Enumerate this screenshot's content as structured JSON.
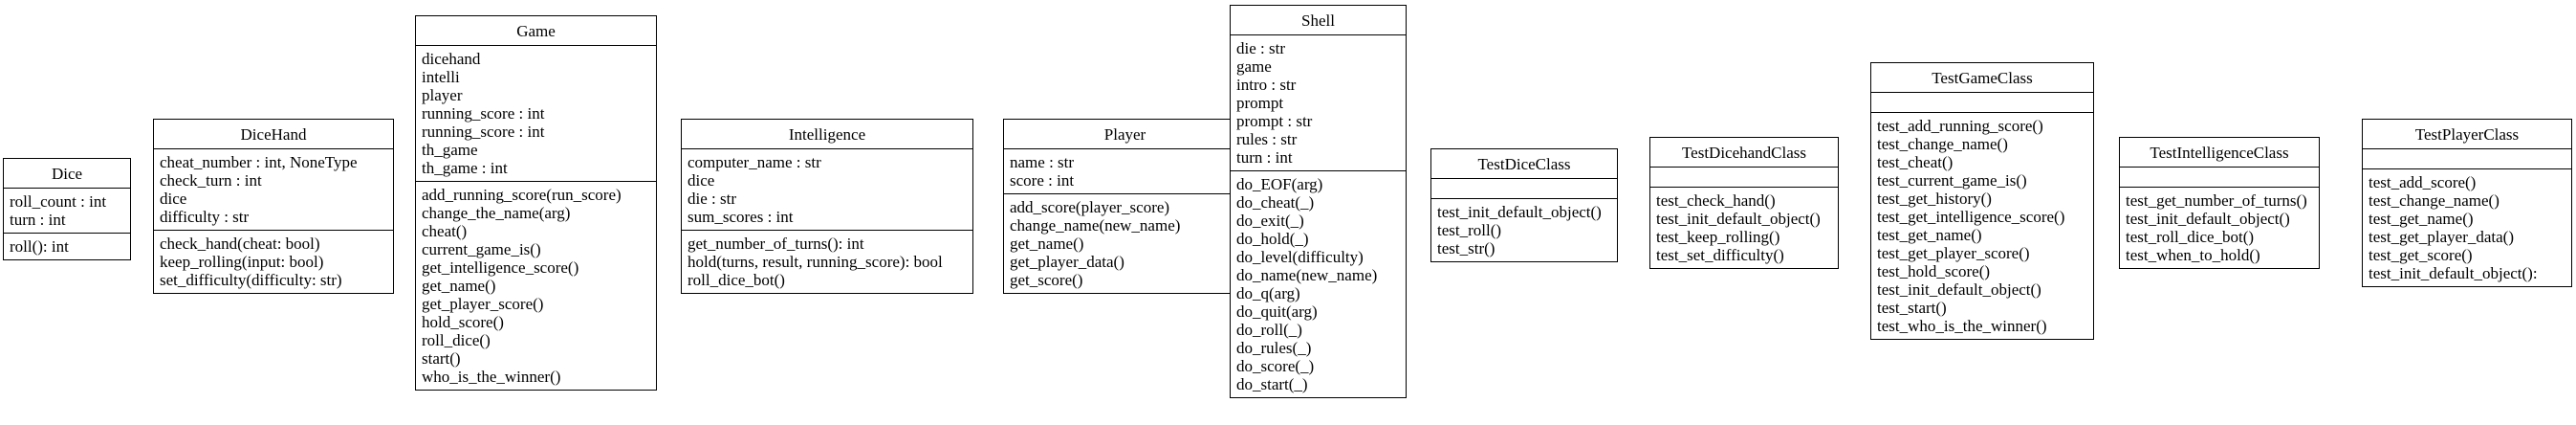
{
  "classes": [
    {
      "id": "dice",
      "name": "Dice",
      "attributes": [
        "roll_count : int",
        "turn : int"
      ],
      "methods": [
        "roll(): int"
      ]
    },
    {
      "id": "dicehand",
      "name": "DiceHand",
      "attributes": [
        "cheat_number : int, NoneType",
        "check_turn : int",
        "dice",
        "difficulty : str"
      ],
      "methods": [
        "check_hand(cheat: bool)",
        "keep_rolling(input: bool)",
        "set_difficulty(difficulty: str)"
      ]
    },
    {
      "id": "game",
      "name": "Game",
      "attributes": [
        "dicehand",
        "intelli",
        "player",
        "running_score : int",
        "running_score : int",
        "th_game",
        "th_game : int"
      ],
      "methods": [
        "add_running_score(run_score)",
        "change_the_name(arg)",
        "cheat()",
        "current_game_is()",
        "get_intelligence_score()",
        "get_name()",
        "get_player_score()",
        "hold_score()",
        "roll_dice()",
        "start()",
        "who_is_the_winner()"
      ]
    },
    {
      "id": "intelligence",
      "name": "Intelligence",
      "attributes": [
        "computer_name : str",
        "dice",
        "die : str",
        "sum_scores : int"
      ],
      "methods": [
        "get_number_of_turns(): int",
        "hold(turns, result, running_score): bool",
        "roll_dice_bot()"
      ]
    },
    {
      "id": "player",
      "name": "Player",
      "attributes": [
        "name : str",
        "score : int"
      ],
      "methods": [
        "add_score(player_score)",
        "change_name(new_name)",
        "get_name()",
        "get_player_data()",
        "get_score()"
      ]
    },
    {
      "id": "shell",
      "name": "Shell",
      "attributes": [
        "die : str",
        "game",
        "intro : str",
        "prompt",
        "prompt : str",
        "rules : str",
        "turn : int"
      ],
      "methods": [
        "do_EOF(arg)",
        "do_cheat(_)",
        "do_exit(_)",
        "do_hold(_)",
        "do_level(difficulty)",
        "do_name(new_name)",
        "do_q(arg)",
        "do_quit(arg)",
        "do_roll(_)",
        "do_rules(_)",
        "do_score(_)",
        "do_start(_)"
      ]
    },
    {
      "id": "testdiceclass",
      "name": "TestDiceClass",
      "attributes": [],
      "methods": [
        "test_init_default_object()",
        "test_roll()",
        "test_str()"
      ]
    },
    {
      "id": "testdicehandclass",
      "name": "TestDicehandClass",
      "attributes": [],
      "methods": [
        "test_check_hand()",
        "test_init_default_object()",
        "test_keep_rolling()",
        "test_set_difficulty()"
      ]
    },
    {
      "id": "testgameclass",
      "name": "TestGameClass",
      "attributes": [],
      "methods": [
        "test_add_running_score()",
        "test_change_name()",
        "test_cheat()",
        "test_current_game_is()",
        "test_get_history()",
        "test_get_intelligence_score()",
        "test_get_name()",
        "test_get_player_score()",
        "test_hold_score()",
        "test_init_default_object()",
        "test_start()",
        "test_who_is_the_winner()"
      ]
    },
    {
      "id": "testintelligenceclass",
      "name": "TestIntelligenceClass",
      "attributes": [],
      "methods": [
        "test_get_number_of_turns()",
        "test_init_default_object()",
        "test_roll_dice_bot()",
        "test_when_to_hold()"
      ]
    },
    {
      "id": "testplayerclass",
      "name": "TestPlayerClass",
      "attributes": [],
      "methods": [
        "test_add_score()",
        "test_change_name()",
        "test_get_name()",
        "test_get_player_data()",
        "test_get_score()",
        "test_init_default_object():"
      ]
    }
  ]
}
